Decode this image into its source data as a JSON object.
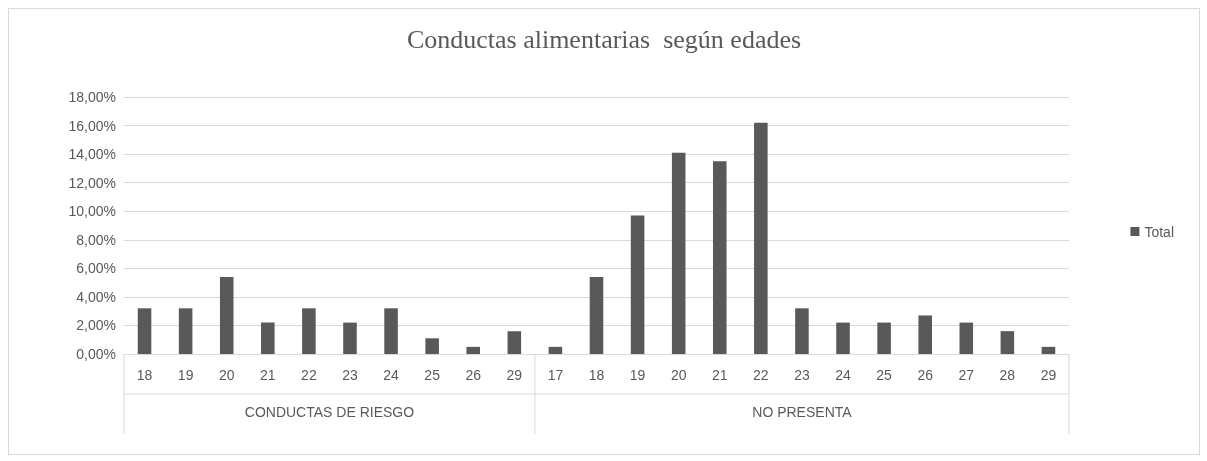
{
  "chart_data": {
    "type": "bar",
    "title": "Conductas alimentarias  según edades",
    "categories": [
      "18",
      "19",
      "20",
      "21",
      "22",
      "23",
      "24",
      "25",
      "26",
      "29",
      "17",
      "18",
      "19",
      "20",
      "21",
      "22",
      "23",
      "24",
      "25",
      "26",
      "27",
      "28",
      "29"
    ],
    "series": [
      {
        "name": "Total",
        "color": "#595959",
        "values": [
          3.2,
          3.2,
          5.4,
          2.2,
          3.2,
          2.2,
          3.2,
          1.1,
          0.5,
          1.6,
          0.5,
          5.4,
          9.7,
          14.1,
          13.5,
          16.2,
          3.2,
          2.2,
          2.2,
          2.7,
          2.2,
          1.6,
          0.5
        ]
      }
    ],
    "ylim": [
      0,
      18
    ],
    "yticks": [
      {
        "value": 0,
        "label": "0,00%"
      },
      {
        "value": 2,
        "label": "2,00%"
      },
      {
        "value": 4,
        "label": "4,00%"
      },
      {
        "value": 6,
        "label": "6,00%"
      },
      {
        "value": 8,
        "label": "8,00%"
      },
      {
        "value": 10,
        "label": "10,00%"
      },
      {
        "value": 12,
        "label": "12,00%"
      },
      {
        "value": 14,
        "label": "14,00%"
      },
      {
        "value": 16,
        "label": "16,00%"
      },
      {
        "value": 18,
        "label": "18,00%"
      }
    ],
    "annotations": [
      "CONDUCTAS DE RIESGO",
      "NO PRESENTA"
    ],
    "grid": "y",
    "legend": "right"
  }
}
